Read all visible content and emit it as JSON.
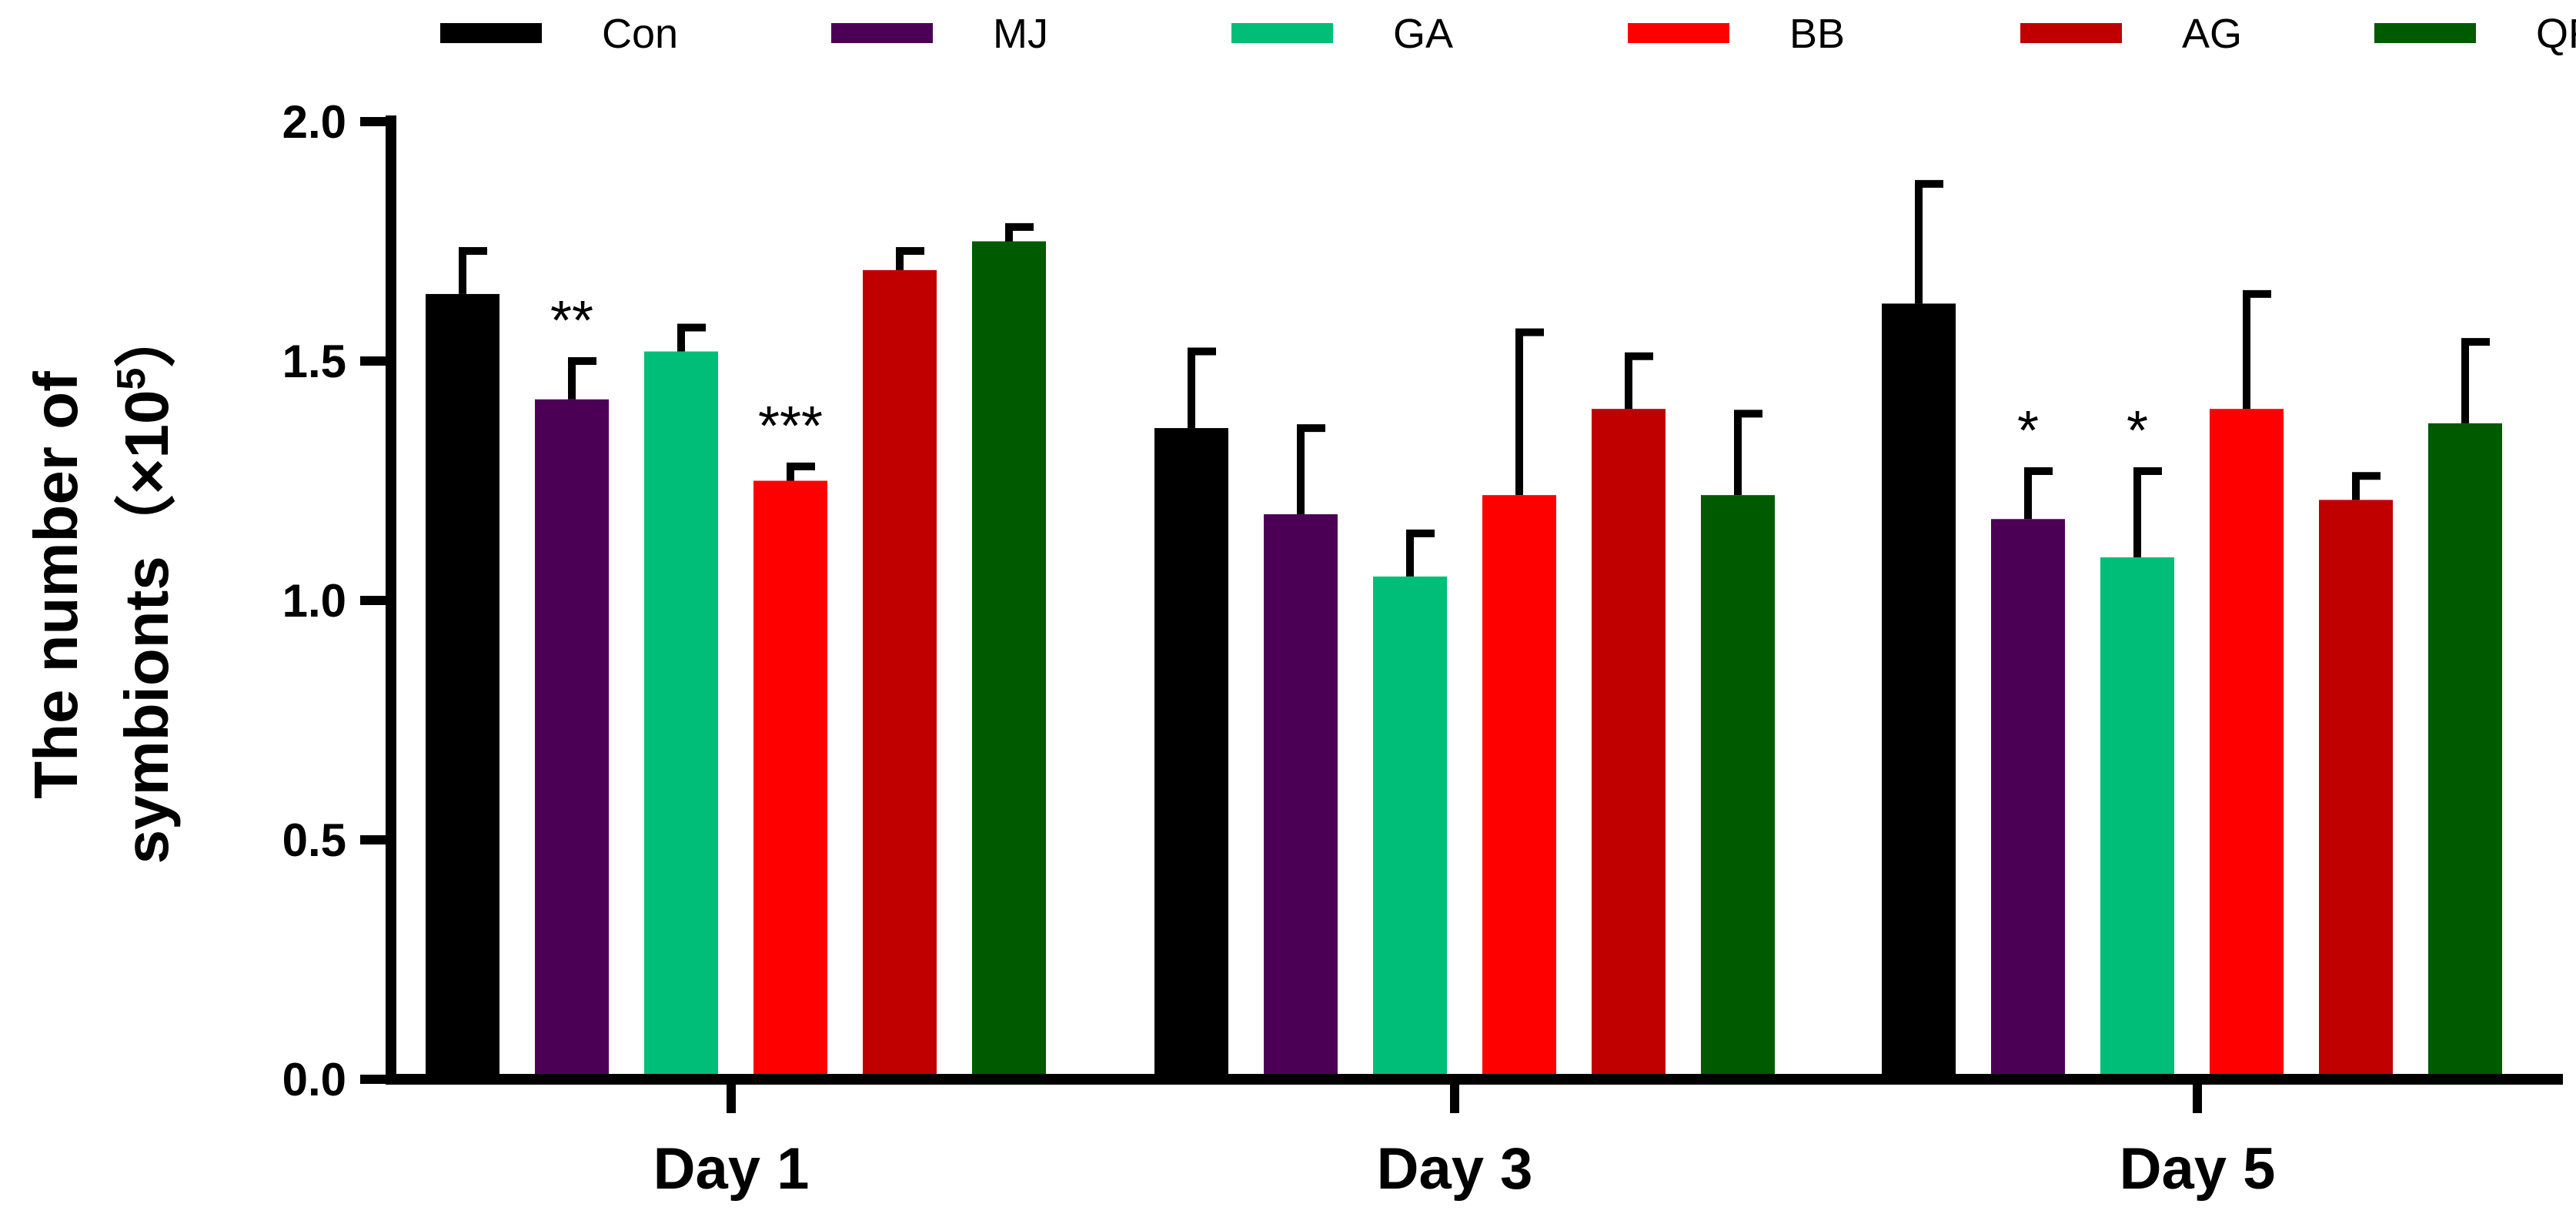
{
  "chart_data": {
    "type": "bar",
    "title": "",
    "ylabel_line1": "The number of",
    "ylabel_line2_prefix": "symbionts（×10",
    "ylabel_exponent": "5",
    "ylabel_line2_suffix": "）",
    "ylim": [
      0,
      2.0
    ],
    "yticks": [
      0.0,
      0.5,
      1.0,
      1.5,
      2.0
    ],
    "ytick_labels": [
      "0.0",
      "0.5",
      "1.0",
      "1.5",
      "2.0"
    ],
    "categories": [
      "Day 1",
      "Day 3",
      "Day 5"
    ],
    "series": [
      {
        "name": "Con",
        "color": "#000000",
        "values": [
          1.64,
          1.36,
          1.62
        ],
        "errors": [
          0.09,
          0.16,
          0.25
        ],
        "sig": [
          "",
          "",
          ""
        ]
      },
      {
        "name": "MJ",
        "color": "#4b0055",
        "values": [
          1.42,
          1.18,
          1.17
        ],
        "errors": [
          0.08,
          0.18,
          0.1
        ],
        "sig": [
          "**",
          "",
          "*"
        ]
      },
      {
        "name": "GA",
        "color": "#00be78",
        "values": [
          1.52,
          1.05,
          1.09
        ],
        "errors": [
          0.05,
          0.09,
          0.18
        ],
        "sig": [
          "",
          "",
          "*"
        ]
      },
      {
        "name": "BB",
        "color": "#ff0000",
        "values": [
          1.25,
          1.22,
          1.4
        ],
        "errors": [
          0.03,
          0.34,
          0.24
        ],
        "sig": [
          "***",
          "",
          ""
        ]
      },
      {
        "name": "AG",
        "color": "#c00000",
        "values": [
          1.69,
          1.4,
          1.21
        ],
        "errors": [
          0.04,
          0.11,
          0.05
        ],
        "sig": [
          "",
          "",
          ""
        ]
      },
      {
        "name": "QR",
        "color": "#005a00",
        "values": [
          1.75,
          1.22,
          1.37
        ],
        "errors": [
          0.03,
          0.17,
          0.17
        ],
        "sig": [
          "",
          "",
          ""
        ]
      }
    ],
    "legend_position": "top"
  }
}
